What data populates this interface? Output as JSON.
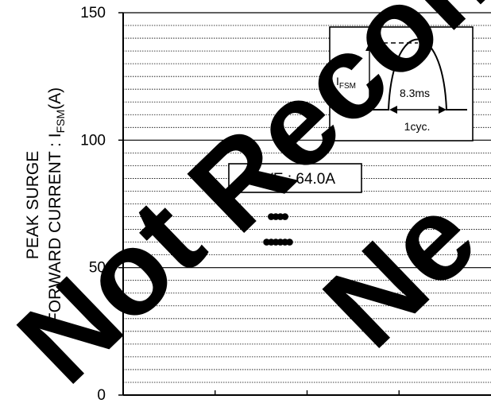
{
  "chart_data": {
    "type": "scatter",
    "ylabel_line1": "PEAK SURGE",
    "ylabel_line2_prefix": "FORWARD CURRENT : I",
    "ylabel_line2_sub": "FSM",
    "ylabel_line2_suffix": "(A)",
    "ylim": [
      0,
      150
    ],
    "yticks": [
      0,
      50,
      100,
      150
    ],
    "ytick_labels": [
      "0",
      "50",
      "100",
      "150"
    ],
    "grid": true,
    "grid_step": 5,
    "xlim": [
      0,
      4
    ],
    "xticks": [
      1,
      2,
      3
    ],
    "points": [
      {
        "x": 1.61,
        "y": 70
      },
      {
        "x": 1.66,
        "y": 70
      },
      {
        "x": 1.71,
        "y": 70
      },
      {
        "x": 1.76,
        "y": 70
      },
      {
        "x": 1.56,
        "y": 60
      },
      {
        "x": 1.61,
        "y": 60
      },
      {
        "x": 1.66,
        "y": 60
      },
      {
        "x": 1.71,
        "y": 60
      },
      {
        "x": 1.76,
        "y": 60
      },
      {
        "x": 1.81,
        "y": 60
      }
    ],
    "annotation": "AVE : 64.0A",
    "inset": {
      "label_prefix": "I",
      "label_sub": "FSM",
      "pulse_label": "8.3ms",
      "cycle_label": "1cyc."
    }
  },
  "watermark": {
    "word1": "Not",
    "word2": "Recom",
    "word3": "Ne",
    "color": "#000000"
  }
}
